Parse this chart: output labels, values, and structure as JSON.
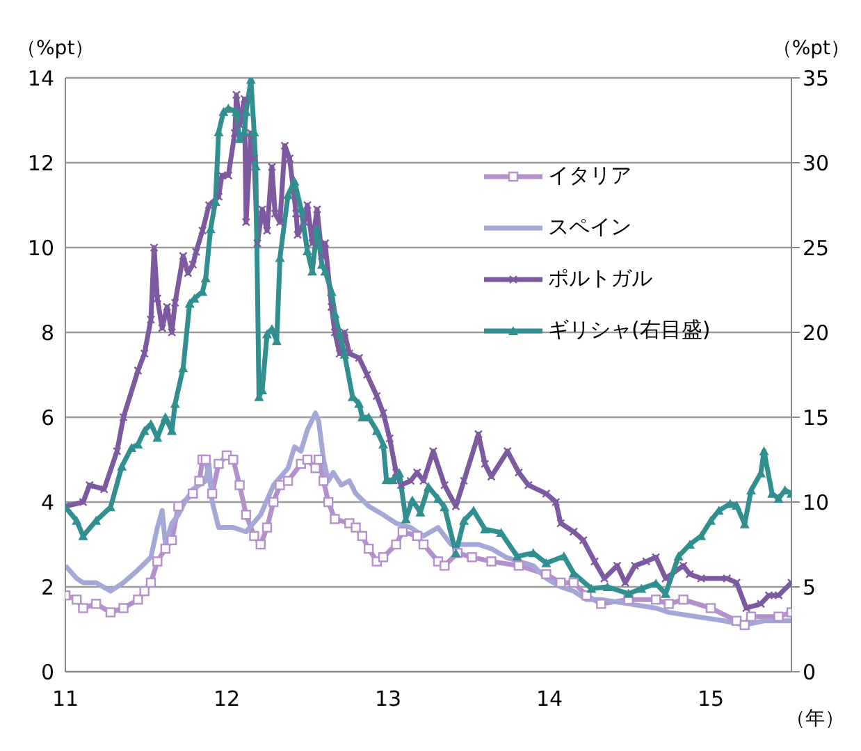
{
  "chart_data": {
    "type": "line",
    "ylabel": "（%pt）",
    "y2label": "（%pt）",
    "xlabel": "（年）",
    "xlim": [
      11,
      15.5
    ],
    "xticks": [
      11,
      12,
      13,
      14,
      15
    ],
    "ylim": [
      0,
      14
    ],
    "yticks": [
      0,
      2,
      4,
      6,
      8,
      10,
      12,
      14
    ],
    "y2lim": [
      0,
      35
    ],
    "y2ticks": [
      0,
      5,
      10,
      15,
      20,
      25,
      30,
      35
    ],
    "grid": "y",
    "legend": "top right",
    "line_style": "solid",
    "series": [
      {
        "name": "イタリア",
        "color": "#b490cc",
        "marker": "square",
        "x": [
          11.0,
          11.07,
          11.11,
          11.19,
          11.28,
          11.36,
          11.45,
          11.49,
          11.53,
          11.57,
          11.62,
          11.66,
          11.7,
          11.79,
          11.83,
          11.85,
          11.87,
          11.91,
          11.95,
          12.0,
          12.04,
          12.08,
          12.12,
          12.17,
          12.21,
          12.25,
          12.29,
          12.33,
          12.38,
          12.46,
          12.5,
          12.55,
          12.57,
          12.6,
          12.63,
          12.67,
          12.76,
          12.8,
          12.84,
          12.88,
          12.93,
          12.97,
          13.05,
          13.09,
          13.18,
          13.22,
          13.31,
          13.35,
          13.43,
          13.52,
          13.64,
          13.81,
          13.98,
          14.07,
          14.15,
          14.23,
          14.32,
          14.49,
          14.66,
          14.74,
          14.83,
          15.0,
          15.16,
          15.21,
          15.25,
          15.42,
          15.5
        ],
        "values": [
          1.8,
          1.7,
          1.5,
          1.6,
          1.4,
          1.5,
          1.7,
          1.9,
          2.1,
          2.6,
          2.9,
          3.1,
          3.9,
          4.2,
          4.5,
          5.0,
          5.0,
          4.2,
          4.9,
          5.1,
          5.0,
          4.4,
          3.7,
          3.2,
          3.0,
          3.4,
          4.0,
          4.4,
          4.5,
          4.9,
          5.0,
          4.8,
          5.0,
          4.5,
          4.0,
          3.6,
          3.5,
          3.4,
          3.2,
          2.9,
          2.6,
          2.7,
          3.0,
          3.3,
          3.2,
          3.0,
          2.6,
          2.5,
          2.8,
          2.7,
          2.6,
          2.5,
          2.3,
          2.1,
          2.1,
          1.8,
          1.6,
          1.7,
          1.7,
          1.6,
          1.7,
          1.5,
          1.2,
          1.1,
          1.3,
          1.3,
          1.4
        ]
      },
      {
        "name": "スペイン",
        "color": "#a4a8d6",
        "marker": "none",
        "x": [
          11.0,
          11.07,
          11.11,
          11.19,
          11.28,
          11.36,
          11.45,
          11.53,
          11.57,
          11.6,
          11.62,
          11.66,
          11.7,
          11.74,
          11.79,
          11.83,
          11.87,
          11.89,
          11.91,
          11.95,
          12.04,
          12.12,
          12.21,
          12.29,
          12.38,
          12.42,
          12.46,
          12.5,
          12.55,
          12.57,
          12.6,
          12.63,
          12.66,
          12.71,
          12.76,
          12.8,
          12.88,
          12.97,
          13.05,
          13.14,
          13.22,
          13.31,
          13.39,
          13.47,
          13.56,
          13.64,
          13.73,
          13.81,
          13.9,
          13.98,
          14.07,
          14.15,
          14.23,
          14.32,
          14.49,
          14.66,
          14.74,
          14.91,
          15.08,
          15.21,
          15.33,
          15.5
        ],
        "values": [
          2.5,
          2.2,
          2.1,
          2.1,
          1.9,
          2.1,
          2.4,
          2.7,
          3.4,
          3.8,
          3.0,
          3.5,
          3.7,
          4.0,
          4.3,
          4.4,
          4.5,
          4.9,
          4.0,
          3.4,
          3.4,
          3.3,
          3.7,
          4.4,
          4.8,
          5.3,
          5.2,
          5.7,
          6.1,
          5.9,
          5.0,
          4.5,
          4.7,
          4.4,
          4.5,
          4.2,
          3.9,
          3.7,
          3.5,
          3.4,
          3.2,
          3.4,
          3.0,
          3.0,
          3.0,
          2.9,
          2.7,
          2.6,
          2.5,
          2.2,
          2.0,
          1.9,
          1.7,
          1.7,
          1.6,
          1.5,
          1.4,
          1.3,
          1.2,
          1.1,
          1.2,
          1.2
        ]
      },
      {
        "name": "ポルトガル",
        "color": "#7d5aa0",
        "marker": "cross",
        "x": [
          11.0,
          11.11,
          11.15,
          11.24,
          11.32,
          11.36,
          11.45,
          11.49,
          11.53,
          11.55,
          11.57,
          11.6,
          11.63,
          11.66,
          11.68,
          11.73,
          11.76,
          11.79,
          11.81,
          11.85,
          11.89,
          11.95,
          11.97,
          12.01,
          12.05,
          12.06,
          12.08,
          12.11,
          12.12,
          12.15,
          12.17,
          12.19,
          12.22,
          12.25,
          12.28,
          12.3,
          12.33,
          12.36,
          12.39,
          12.43,
          12.44,
          12.48,
          12.5,
          12.53,
          12.56,
          12.59,
          12.61,
          12.65,
          12.67,
          12.7,
          12.73,
          12.76,
          12.82,
          12.87,
          12.93,
          12.97,
          13.01,
          13.05,
          13.08,
          13.14,
          13.18,
          13.22,
          13.28,
          13.35,
          13.42,
          13.47,
          13.56,
          13.6,
          13.64,
          13.74,
          13.81,
          13.87,
          13.98,
          14.04,
          14.07,
          14.15,
          14.21,
          14.28,
          14.34,
          14.42,
          14.47,
          14.53,
          14.6,
          14.66,
          14.72,
          14.83,
          14.87,
          14.94,
          15.1,
          15.16,
          15.22,
          15.31,
          15.36,
          15.42,
          15.5
        ],
        "values": [
          3.9,
          4.0,
          4.4,
          4.3,
          5.2,
          6.0,
          7.1,
          7.5,
          8.3,
          10.0,
          8.8,
          8.1,
          8.6,
          8.0,
          8.7,
          9.8,
          9.4,
          9.6,
          9.9,
          10.4,
          11.0,
          11.2,
          11.7,
          11.7,
          12.7,
          13.6,
          12.9,
          13.5,
          10.6,
          12.7,
          12.1,
          10.1,
          10.9,
          10.4,
          11.9,
          10.8,
          10.6,
          12.4,
          12.1,
          10.8,
          10.3,
          10.6,
          11.0,
          10.1,
          10.9,
          9.8,
          10.1,
          8.6,
          8.0,
          7.5,
          8.0,
          7.5,
          7.4,
          7.0,
          6.5,
          6.1,
          5.5,
          4.7,
          4.4,
          4.5,
          4.7,
          4.5,
          5.2,
          4.4,
          3.9,
          4.5,
          5.6,
          4.9,
          4.6,
          5.2,
          4.7,
          4.4,
          4.2,
          4.0,
          3.5,
          3.3,
          3.1,
          2.6,
          2.2,
          2.5,
          2.1,
          2.5,
          2.6,
          2.7,
          2.2,
          2.5,
          2.3,
          2.2,
          2.2,
          2.1,
          1.5,
          1.6,
          1.8,
          1.8,
          2.1
        ]
      },
      {
        "name": "ギリシャ(右目盛)",
        "color": "#31908f",
        "marker": "triangle",
        "axis": "y2",
        "x": [
          11.0,
          11.07,
          11.11,
          11.19,
          11.28,
          11.35,
          11.41,
          11.45,
          11.49,
          11.53,
          11.57,
          11.62,
          11.66,
          11.68,
          11.73,
          11.77,
          11.8,
          11.85,
          11.87,
          11.9,
          11.93,
          11.95,
          11.98,
          12.01,
          12.06,
          12.08,
          12.11,
          12.12,
          12.15,
          12.17,
          12.18,
          12.2,
          12.22,
          12.25,
          12.28,
          12.31,
          12.33,
          12.38,
          12.42,
          12.46,
          12.5,
          12.53,
          12.56,
          12.59,
          12.61,
          12.65,
          12.67,
          12.7,
          12.73,
          12.78,
          12.82,
          12.84,
          12.88,
          12.93,
          12.97,
          12.99,
          13.03,
          13.07,
          13.11,
          13.15,
          13.2,
          13.25,
          13.31,
          13.35,
          13.42,
          13.47,
          13.53,
          13.6,
          13.7,
          13.8,
          13.9,
          13.98,
          14.09,
          14.15,
          14.26,
          14.36,
          14.49,
          14.57,
          14.66,
          14.72,
          14.8,
          14.87,
          14.94,
          15.0,
          15.05,
          15.12,
          15.16,
          15.21,
          15.25,
          15.31,
          15.33,
          15.38,
          15.42,
          15.46,
          15.5
        ],
        "values": [
          9.7,
          8.9,
          8.0,
          8.9,
          9.7,
          12.1,
          13.2,
          13.4,
          14.2,
          14.6,
          13.8,
          15.0,
          14.2,
          15.8,
          17.9,
          21.7,
          22.0,
          22.4,
          23.2,
          26.1,
          27.7,
          31.8,
          33.0,
          33.2,
          33.0,
          31.4,
          31.8,
          33.0,
          34.9,
          31.8,
          29.8,
          16.2,
          16.6,
          19.9,
          20.2,
          19.5,
          24.4,
          28.1,
          28.9,
          27.3,
          24.8,
          23.6,
          26.1,
          24.0,
          23.6,
          22.4,
          21.1,
          19.9,
          18.7,
          16.2,
          15.8,
          15.0,
          15.0,
          14.2,
          13.4,
          11.3,
          11.3,
          11.7,
          9.0,
          10.1,
          9.4,
          10.9,
          10.2,
          9.7,
          7.0,
          8.9,
          9.5,
          8.4,
          8.2,
          6.8,
          7.0,
          6.4,
          6.8,
          5.8,
          4.9,
          5.0,
          4.6,
          4.9,
          5.2,
          4.6,
          6.8,
          7.5,
          8.0,
          8.9,
          9.5,
          9.9,
          9.8,
          8.7,
          10.7,
          11.7,
          13.0,
          10.5,
          10.2,
          10.7,
          10.5
        ]
      }
    ]
  }
}
